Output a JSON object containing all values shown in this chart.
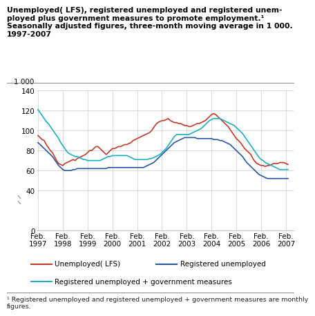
{
  "title": "Unemployed( LFS), registered unemployed and registered unem-\nployed plus government measures to promote employment.¹\nSeasonally adjusted figures, three-month moving average in 1 000.\n1997-2007",
  "ylabel": "1 000",
  "footnote": "¹ Registered unemployed and registered unemployed + government measures are monthly\nfigures.",
  "ylim": [
    0,
    140
  ],
  "yticks": [
    0,
    40,
    60,
    80,
    100,
    120,
    140
  ],
  "color_lfs": "#c0392b",
  "color_reg": "#2855a0",
  "color_gov": "#1ab0c0",
  "legend_lfs": "Unemployed( LFS)",
  "legend_reg": "Registered unemployed",
  "legend_gov": "Registered unemployed + government measures",
  "lfs_data": [
    95,
    93,
    91,
    90,
    86,
    83,
    80,
    78,
    74,
    70,
    67,
    66,
    65,
    67,
    68,
    69,
    70,
    71,
    70,
    72,
    73,
    74,
    75,
    76,
    78,
    80,
    80,
    82,
    84,
    84,
    82,
    80,
    78,
    76,
    78,
    80,
    82,
    82,
    83,
    84,
    84,
    85,
    86,
    86,
    87,
    88,
    90,
    91,
    92,
    93,
    94,
    95,
    96,
    97,
    98,
    100,
    103,
    106,
    108,
    109,
    110,
    110,
    111,
    112,
    110,
    109,
    108,
    108,
    107,
    107,
    106,
    105,
    105,
    104,
    104,
    105,
    106,
    107,
    107,
    108,
    109,
    110,
    112,
    114,
    116,
    117,
    116,
    114,
    112,
    110,
    108,
    106,
    104,
    101,
    98,
    95,
    92,
    90,
    88,
    85,
    82,
    80,
    78,
    76,
    72,
    69,
    67,
    66,
    65,
    65,
    64,
    65,
    65,
    66,
    67,
    67,
    67,
    68,
    68,
    68,
    67,
    66
  ],
  "reg_data": [
    88,
    86,
    84,
    82,
    80,
    78,
    76,
    74,
    71,
    68,
    65,
    63,
    61,
    60,
    60,
    60,
    60,
    61,
    61,
    62,
    62,
    62,
    62,
    62,
    62,
    62,
    62,
    62,
    62,
    62,
    62,
    62,
    62,
    62,
    63,
    63,
    63,
    63,
    63,
    63,
    63,
    63,
    63,
    63,
    63,
    63,
    63,
    63,
    63,
    63,
    63,
    63,
    64,
    65,
    66,
    67,
    68,
    70,
    72,
    74,
    76,
    78,
    80,
    82,
    84,
    86,
    88,
    89,
    90,
    91,
    92,
    93,
    93,
    93,
    93,
    93,
    93,
    92,
    92,
    92,
    92,
    92,
    92,
    92,
    92,
    91,
    91,
    91,
    90,
    90,
    89,
    88,
    87,
    86,
    84,
    82,
    80,
    78,
    76,
    74,
    71,
    68,
    66,
    64,
    62,
    60,
    58,
    56,
    55,
    54,
    53,
    52,
    52,
    52,
    52,
    52,
    52,
    52,
    52,
    52,
    52,
    52
  ],
  "gov_data": [
    121,
    118,
    115,
    112,
    109,
    107,
    104,
    101,
    98,
    95,
    92,
    88,
    85,
    82,
    79,
    77,
    76,
    75,
    74,
    74,
    73,
    72,
    71,
    71,
    70,
    70,
    70,
    70,
    70,
    70,
    70,
    71,
    72,
    73,
    74,
    74,
    75,
    75,
    75,
    75,
    75,
    75,
    75,
    75,
    74,
    73,
    72,
    71,
    71,
    71,
    71,
    71,
    71,
    71,
    72,
    72,
    73,
    74,
    75,
    76,
    78,
    80,
    82,
    85,
    88,
    91,
    94,
    96,
    96,
    96,
    96,
    96,
    96,
    96,
    97,
    98,
    99,
    100,
    101,
    102,
    104,
    106,
    108,
    110,
    111,
    112,
    112,
    112,
    112,
    111,
    110,
    109,
    108,
    107,
    106,
    105,
    103,
    101,
    99,
    97,
    94,
    91,
    88,
    85,
    82,
    79,
    76,
    73,
    71,
    70,
    68,
    67,
    66,
    65,
    64,
    63,
    62,
    61,
    61,
    61,
    61,
    61
  ]
}
